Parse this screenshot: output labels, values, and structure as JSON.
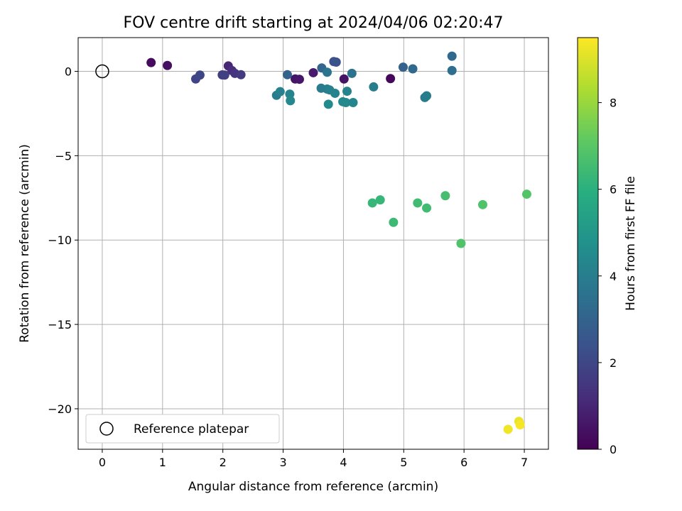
{
  "chart_data": {
    "type": "scatter",
    "title": "FOV centre drift starting at 2024/04/06 02:20:47",
    "xlabel": "Angular distance from reference (arcmin)",
    "ylabel": "Rotation from reference (arcmin)",
    "xlim": [
      -0.4,
      7.4
    ],
    "ylim": [
      -22.4,
      2.0
    ],
    "xticks": [
      0,
      1,
      2,
      3,
      4,
      5,
      6,
      7
    ],
    "yticks": [
      0,
      -5,
      -10,
      -15,
      -20
    ],
    "grid": true,
    "legend": {
      "position": "lower-left",
      "entries": [
        "Reference platepar"
      ]
    },
    "reference_point": {
      "x": 0,
      "y": 0
    },
    "colorbar": {
      "label": "Hours from first FF file",
      "colormap": "viridis",
      "range": [
        0,
        9.5
      ],
      "ticks": [
        0,
        2,
        4,
        6,
        8
      ]
    },
    "points": [
      {
        "x": 0.81,
        "y": 0.52,
        "t": 0.3
      },
      {
        "x": 1.08,
        "y": 0.35,
        "t": 0.4
      },
      {
        "x": 3.2,
        "y": -0.45,
        "t": 0.5
      },
      {
        "x": 3.27,
        "y": -0.47,
        "t": 0.6
      },
      {
        "x": 3.5,
        "y": -0.08,
        "t": 0.7
      },
      {
        "x": 4.01,
        "y": -0.45,
        "t": 0.5
      },
      {
        "x": 4.78,
        "y": -0.43,
        "t": 0.2
      },
      {
        "x": 2.09,
        "y": 0.32,
        "t": 1.0
      },
      {
        "x": 2.15,
        "y": 0.05,
        "t": 1.2
      },
      {
        "x": 2.2,
        "y": -0.12,
        "t": 1.4
      },
      {
        "x": 2.3,
        "y": -0.2,
        "t": 1.6
      },
      {
        "x": 1.99,
        "y": -0.21,
        "t": 1.7
      },
      {
        "x": 2.03,
        "y": -0.22,
        "t": 1.8
      },
      {
        "x": 1.55,
        "y": -0.45,
        "t": 1.9
      },
      {
        "x": 1.62,
        "y": -0.22,
        "t": 2.0
      },
      {
        "x": 3.84,
        "y": 0.58,
        "t": 2.3
      },
      {
        "x": 3.88,
        "y": 0.55,
        "t": 2.4
      },
      {
        "x": 3.07,
        "y": -0.2,
        "t": 3.0
      },
      {
        "x": 3.64,
        "y": 0.2,
        "t": 3.1
      },
      {
        "x": 4.99,
        "y": 0.25,
        "t": 3.0
      },
      {
        "x": 5.15,
        "y": 0.15,
        "t": 3.2
      },
      {
        "x": 5.8,
        "y": 0.9,
        "t": 3.2
      },
      {
        "x": 5.8,
        "y": 0.05,
        "t": 3.4
      },
      {
        "x": 3.73,
        "y": -0.05,
        "t": 3.7
      },
      {
        "x": 4.14,
        "y": -0.12,
        "t": 3.6
      },
      {
        "x": 3.63,
        "y": -1.0,
        "t": 3.9
      },
      {
        "x": 3.73,
        "y": -1.05,
        "t": 4.0
      },
      {
        "x": 3.77,
        "y": -1.1,
        "t": 4.1
      },
      {
        "x": 3.86,
        "y": -1.3,
        "t": 4.2
      },
      {
        "x": 4.06,
        "y": -1.18,
        "t": 4.2
      },
      {
        "x": 4.5,
        "y": -0.92,
        "t": 4.0
      },
      {
        "x": 2.89,
        "y": -1.42,
        "t": 4.0
      },
      {
        "x": 2.95,
        "y": -1.2,
        "t": 4.2
      },
      {
        "x": 3.11,
        "y": -1.35,
        "t": 4.3
      },
      {
        "x": 3.12,
        "y": -1.74,
        "t": 4.4
      },
      {
        "x": 3.75,
        "y": -1.95,
        "t": 4.5
      },
      {
        "x": 3.99,
        "y": -1.8,
        "t": 4.5
      },
      {
        "x": 4.04,
        "y": -1.85,
        "t": 4.4
      },
      {
        "x": 4.16,
        "y": -1.85,
        "t": 4.3
      },
      {
        "x": 5.35,
        "y": -1.55,
        "t": 3.9
      },
      {
        "x": 5.38,
        "y": -1.45,
        "t": 4.0
      },
      {
        "x": 4.48,
        "y": -7.8,
        "t": 6.3
      },
      {
        "x": 4.61,
        "y": -7.62,
        "t": 6.3
      },
      {
        "x": 4.83,
        "y": -8.95,
        "t": 6.4
      },
      {
        "x": 5.23,
        "y": -7.8,
        "t": 6.5
      },
      {
        "x": 5.38,
        "y": -8.1,
        "t": 6.5
      },
      {
        "x": 5.69,
        "y": -7.37,
        "t": 6.6
      },
      {
        "x": 5.95,
        "y": -10.2,
        "t": 6.8
      },
      {
        "x": 6.31,
        "y": -7.9,
        "t": 6.8
      },
      {
        "x": 7.04,
        "y": -7.28,
        "t": 6.9
      },
      {
        "x": 6.73,
        "y": -21.22,
        "t": 9.3
      },
      {
        "x": 6.91,
        "y": -20.75,
        "t": 9.2
      },
      {
        "x": 6.93,
        "y": -20.95,
        "t": 9.4
      }
    ]
  }
}
